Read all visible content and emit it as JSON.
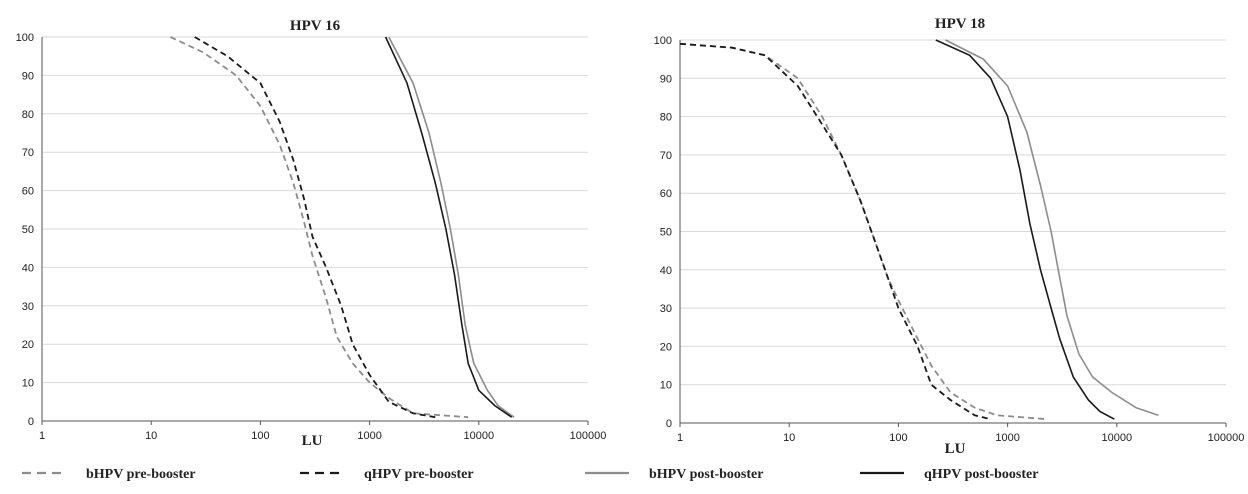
{
  "chart_data": [
    {
      "type": "line",
      "title": "HPV 16",
      "xlabel": "LU",
      "ylabel": "",
      "xscale": "log",
      "xlim": [
        1,
        100000
      ],
      "ylim": [
        0,
        100
      ],
      "x_ticks": [
        "1",
        "10",
        "100",
        "1000",
        "10000",
        "100000"
      ],
      "y_ticks": [
        "0",
        "10",
        "20",
        "30",
        "40",
        "50",
        "60",
        "70",
        "80",
        "90",
        "100"
      ],
      "grid": "horizontal",
      "series": [
        {
          "name": "bHPV pre-booster",
          "style": "dashed",
          "color": "#8c8c8c",
          "x": [
            15,
            30,
            60,
            100,
            150,
            200,
            250,
            300,
            400,
            500,
            700,
            1000,
            1500,
            2500,
            8000
          ],
          "y": [
            100,
            96,
            90,
            82,
            72,
            62,
            52,
            43,
            32,
            22,
            15,
            10,
            6,
            2,
            1
          ]
        },
        {
          "name": "qHPV pre-booster",
          "style": "dashed",
          "color": "#1a1a1a",
          "x": [
            25,
            50,
            100,
            150,
            200,
            250,
            300,
            400,
            550,
            700,
            1000,
            1500,
            2500,
            4000
          ],
          "y": [
            100,
            95,
            88,
            78,
            68,
            58,
            48,
            40,
            30,
            20,
            12,
            5,
            2,
            1
          ]
        },
        {
          "name": "bHPV post-booster",
          "style": "solid",
          "color": "#8c8c8c",
          "x": [
            1500,
            2500,
            3500,
            4500,
            5500,
            6500,
            7500,
            9000,
            12000,
            15000,
            21000
          ],
          "y": [
            100,
            88,
            75,
            62,
            50,
            38,
            25,
            15,
            8,
            4,
            1
          ]
        },
        {
          "name": "qHPV post-booster",
          "style": "solid",
          "color": "#1a1a1a",
          "x": [
            1400,
            2200,
            3000,
            4000,
            5000,
            6000,
            7000,
            8000,
            10000,
            14000,
            20000
          ],
          "y": [
            100,
            88,
            75,
            62,
            50,
            38,
            25,
            15,
            8,
            4,
            1
          ]
        }
      ]
    },
    {
      "type": "line",
      "title": "HPV 18",
      "xlabel": "LU",
      "ylabel": "",
      "xscale": "log",
      "xlim": [
        1,
        100000
      ],
      "ylim": [
        0,
        100
      ],
      "x_ticks": [
        "1",
        "10",
        "100",
        "1000",
        "10000",
        "100000"
      ],
      "y_ticks": [
        "0",
        "10",
        "20",
        "30",
        "40",
        "50",
        "60",
        "70",
        "80",
        "90",
        "100"
      ],
      "grid": "horizontal",
      "series": [
        {
          "name": "bHPV pre-booster",
          "style": "dashed",
          "color": "#8c8c8c",
          "x": [
            1,
            3,
            6,
            12,
            20,
            30,
            45,
            60,
            80,
            100,
            150,
            200,
            300,
            500,
            800,
            2300
          ],
          "y": [
            99,
            98,
            96,
            90,
            80,
            70,
            58,
            48,
            38,
            32,
            22,
            15,
            8,
            4,
            2,
            1
          ]
        },
        {
          "name": "qHPV pre-booster",
          "style": "dashed",
          "color": "#1a1a1a",
          "x": [
            1,
            3,
            6,
            12,
            20,
            30,
            45,
            60,
            80,
            100,
            150,
            200,
            300,
            500,
            700
          ],
          "y": [
            99,
            98,
            96,
            88,
            78,
            70,
            58,
            48,
            38,
            30,
            20,
            10,
            6,
            2,
            1
          ]
        },
        {
          "name": "bHPV post-booster",
          "style": "solid",
          "color": "#8c8c8c",
          "x": [
            270,
            600,
            1000,
            1500,
            2000,
            2500,
            3000,
            3500,
            4500,
            6000,
            9000,
            15000,
            24000
          ],
          "y": [
            100,
            95,
            88,
            76,
            62,
            50,
            38,
            28,
            18,
            12,
            8,
            4,
            2
          ]
        },
        {
          "name": "qHPV post-booster",
          "style": "solid",
          "color": "#1a1a1a",
          "x": [
            220,
            450,
            700,
            1000,
            1300,
            1600,
            2000,
            2500,
            3000,
            4000,
            5500,
            7000,
            9500
          ],
          "y": [
            100,
            96,
            90,
            80,
            66,
            52,
            40,
            30,
            22,
            12,
            6,
            3,
            1
          ]
        }
      ]
    }
  ],
  "legend": [
    {
      "label": "bHPV pre-booster",
      "style": "dashed",
      "color": "#8c8c8c"
    },
    {
      "label": "qHPV pre-booster",
      "style": "dashed",
      "color": "#1a1a1a"
    },
    {
      "label": "bHPV post-booster",
      "style": "solid",
      "color": "#8c8c8c"
    },
    {
      "label": "qHPV post-booster",
      "style": "solid",
      "color": "#1a1a1a"
    }
  ]
}
